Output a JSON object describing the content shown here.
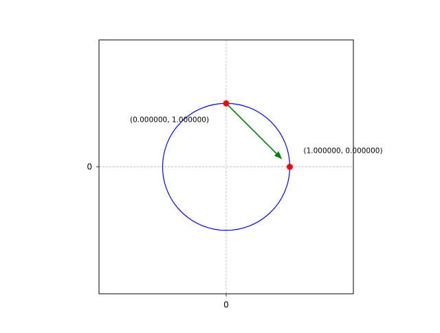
{
  "chart_data": {
    "type": "scatter",
    "title": "",
    "xlabel": "",
    "ylabel": "",
    "xlim": [
      -2,
      2
    ],
    "ylim": [
      -2,
      2
    ],
    "grid": true,
    "aspect": "equal",
    "xticks": [
      {
        "value": 0,
        "label": "0"
      }
    ],
    "yticks": [
      {
        "value": 0,
        "label": "0"
      }
    ],
    "circle": {
      "center": [
        0,
        0
      ],
      "radius": 1,
      "color": "#0000ff"
    },
    "points": [
      {
        "x": 0,
        "y": 1,
        "label": "(0.000000, 1.000000)",
        "color": "#ff0000"
      },
      {
        "x": 1,
        "y": 0,
        "label": "(1.000000, 0.000000)",
        "color": "#ff0000"
      }
    ],
    "arrow": {
      "from": [
        0,
        1
      ],
      "to": [
        0.87,
        0.13
      ],
      "color": "#008000"
    },
    "colors": {
      "circle": "#0000ff",
      "points": "#ff0000",
      "arrow": "#008000",
      "grid": "#b0b0b0"
    }
  }
}
